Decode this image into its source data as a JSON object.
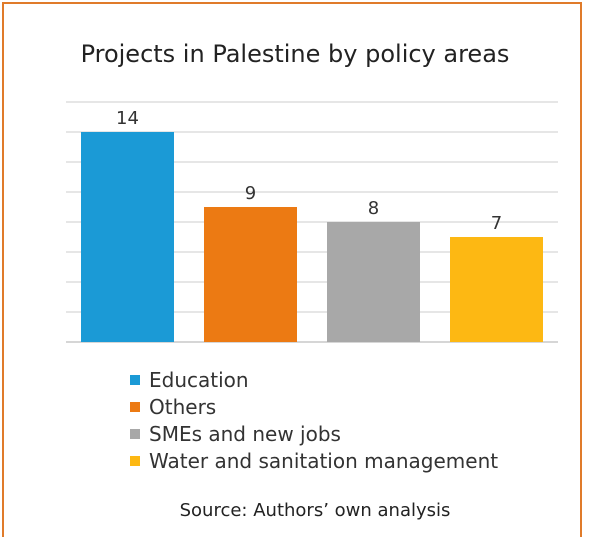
{
  "chart_data": {
    "type": "bar",
    "title": "Projects in Palestine by policy areas",
    "categories": [
      "Education",
      "Others",
      "SMEs and new jobs",
      "Water and sanitation management"
    ],
    "values": [
      14,
      9,
      8,
      7
    ],
    "data_labels": [
      "14",
      "9",
      "8",
      "7"
    ],
    "colors": [
      "#1b9ad6",
      "#ec7a13",
      "#a8a8a8",
      "#fdb813"
    ],
    "ylim": [
      0,
      16
    ],
    "y_gridline_step": 2,
    "grid": true,
    "legend_placement": "bottom",
    "xlabel": "",
    "ylabel": ""
  },
  "source": "Source: Authors’ own analysis",
  "frame_color": "#e07b2a"
}
